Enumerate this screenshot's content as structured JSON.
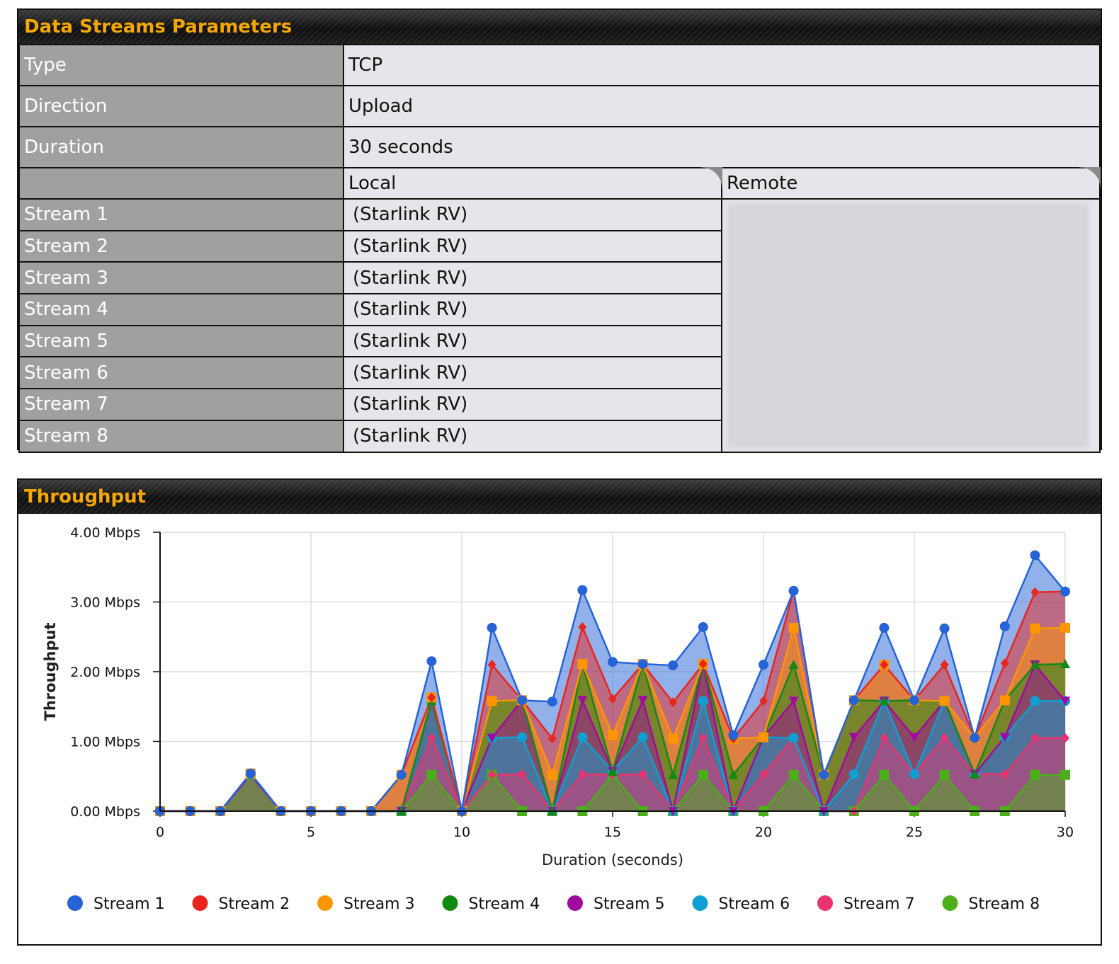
{
  "params": {
    "title": "Data Streams Parameters",
    "rows": [
      {
        "label": "Type",
        "value": "TCP"
      },
      {
        "label": "Direction",
        "value": "Upload"
      },
      {
        "label": "Duration",
        "value": "30 seconds"
      }
    ],
    "local_header": "Local",
    "remote_header": "Remote",
    "streams": [
      {
        "label": "Stream 1",
        "local": "(Starlink RV)"
      },
      {
        "label": "Stream 2",
        "local": "(Starlink RV)"
      },
      {
        "label": "Stream 3",
        "local": "(Starlink RV)"
      },
      {
        "label": "Stream 4",
        "local": "(Starlink RV)"
      },
      {
        "label": "Stream 5",
        "local": "(Starlink RV)"
      },
      {
        "label": "Stream 6",
        "local": "(Starlink RV)"
      },
      {
        "label": "Stream 7",
        "local": "(Starlink RV)"
      },
      {
        "label": "Stream 8",
        "local": "(Starlink RV)"
      }
    ]
  },
  "throughput": {
    "title": "Throughput"
  },
  "chart_data": {
    "type": "area",
    "stacked": true,
    "title": "",
    "xlabel": "Duration (seconds)",
    "ylabel": "Throughput",
    "xlim": [
      0,
      30
    ],
    "ylim": [
      0,
      4
    ],
    "x_ticks": [
      "0",
      "5",
      "10",
      "15",
      "20",
      "25",
      "30"
    ],
    "y_ticks": [
      "0.00 Mbps",
      "1.00 Mbps",
      "2.00 Mbps",
      "3.00 Mbps",
      "4.00 Mbps"
    ],
    "grid": true,
    "legend_position": "bottom",
    "x": [
      0,
      1,
      2,
      3,
      4,
      5,
      6,
      7,
      8,
      9,
      10,
      11,
      12,
      13,
      14,
      15,
      16,
      17,
      18,
      19,
      20,
      21,
      22,
      23,
      24,
      25,
      26,
      27,
      28,
      29,
      30
    ],
    "series": [
      {
        "name": "Stream 8",
        "color": "#4caf1a",
        "marker": "square",
        "values": [
          0,
          0,
          0,
          0.52,
          0,
          0,
          0,
          0,
          0,
          0.52,
          0,
          0.52,
          0,
          0,
          0,
          0.52,
          0,
          0,
          0.52,
          0,
          0,
          0.52,
          0,
          0,
          0.52,
          0,
          0.52,
          0,
          0,
          0.52,
          0.52
        ]
      },
      {
        "name": "Stream 7",
        "color": "#e8336f",
        "marker": "diamond",
        "values": [
          0,
          0,
          0,
          0,
          0,
          0,
          0,
          0,
          0,
          0.53,
          0,
          0,
          0.53,
          0,
          0.53,
          0,
          0.53,
          0,
          0.53,
          0,
          0.53,
          0.53,
          0,
          0,
          0.53,
          0.53,
          0.53,
          0.53,
          0.53,
          0.53,
          0.53
        ]
      },
      {
        "name": "Stream 6",
        "color": "#0ea0d2",
        "marker": "circle",
        "values": [
          0,
          0,
          0,
          0,
          0,
          0,
          0,
          0,
          0,
          0.53,
          0,
          0.53,
          0.53,
          0,
          0.53,
          0.05,
          0.53,
          0,
          0.53,
          0,
          0.53,
          0,
          0,
          0.53,
          0.53,
          0,
          0.53,
          0,
          0.53,
          0.53,
          0.53
        ]
      },
      {
        "name": "Stream 5",
        "color": "#a00aa0",
        "marker": "triangle-down",
        "values": [
          0,
          0,
          0,
          0,
          0,
          0,
          0,
          0,
          0,
          0,
          0,
          0,
          0.53,
          0,
          0.53,
          0,
          0.53,
          0,
          0.53,
          0,
          0,
          0.53,
          0,
          0.53,
          0,
          0.53,
          0,
          0,
          0,
          0.52,
          0
        ]
      },
      {
        "name": "Stream 4",
        "color": "#118a11",
        "marker": "triangle",
        "values": [
          0,
          0,
          0,
          0.02,
          0,
          0,
          0,
          0,
          0,
          0,
          0,
          0.53,
          0,
          0,
          0.52,
          0,
          0.52,
          0.52,
          0,
          0.52,
          0,
          0.52,
          0.52,
          0.53,
          0,
          0.53,
          0,
          0,
          0.53,
          0,
          0.53
        ]
      },
      {
        "name": "Stream 3",
        "color": "#ff9500",
        "marker": "square",
        "values": [
          0,
          0,
          0,
          0,
          0,
          0,
          0,
          0,
          0.52,
          0.05,
          0,
          0,
          0,
          0.52,
          0,
          0.52,
          0,
          0.52,
          0,
          0.52,
          0,
          0.53,
          0,
          0,
          0.52,
          0,
          0,
          0.52,
          0,
          0.52,
          0.52
        ]
      },
      {
        "name": "Stream 2",
        "color": "#e8261e",
        "marker": "diamond",
        "values": [
          0,
          0,
          0,
          0,
          0,
          0,
          0,
          0,
          0,
          0,
          0,
          0.52,
          0,
          0.52,
          0.53,
          0.52,
          0,
          0.52,
          0,
          0,
          0.52,
          0.53,
          0,
          0,
          0,
          0,
          0.52,
          0,
          0.53,
          0.52,
          0.52
        ]
      },
      {
        "name": "Stream 1",
        "color": "#2563d6",
        "marker": "circle",
        "values": [
          0,
          0,
          0,
          0,
          0,
          0,
          0,
          0,
          0,
          0.52,
          0,
          0.53,
          0,
          0.53,
          0.53,
          0.53,
          0,
          0.53,
          0.53,
          0.05,
          0.52,
          0,
          0,
          0,
          0.53,
          0,
          0.52,
          0,
          0.53,
          0.53,
          0
        ]
      }
    ],
    "legend_order": [
      "Stream 1",
      "Stream 2",
      "Stream 3",
      "Stream 4",
      "Stream 5",
      "Stream 6",
      "Stream 7",
      "Stream 8"
    ]
  }
}
